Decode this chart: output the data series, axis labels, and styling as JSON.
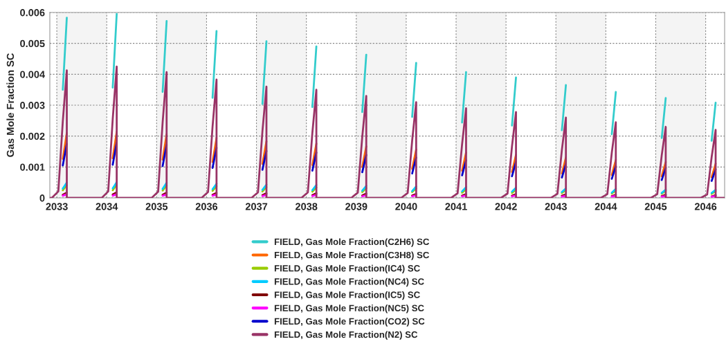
{
  "chart_data": {
    "type": "line",
    "ylabel": "Gas Mole Fraction SC",
    "xlim": [
      2032.86,
      2046.38
    ],
    "xticks": [
      2033,
      2034,
      2035,
      2036,
      2037,
      2038,
      2039,
      2040,
      2041,
      2042,
      2043,
      2044,
      2045,
      2046
    ],
    "ylim": [
      0,
      0.006
    ],
    "yticks": [
      0,
      0.001,
      0.002,
      0.003,
      0.004,
      0.005,
      0.006
    ],
    "grid": true,
    "legend": "bottom",
    "line_style": "solid",
    "marker": "none",
    "bands": [
      {
        "axis": "x",
        "from": 2033,
        "to": 2034,
        "color": "#f4f4f4"
      },
      {
        "axis": "x",
        "from": 2035,
        "to": 2036,
        "color": "#f4f4f4"
      },
      {
        "axis": "x",
        "from": 2037,
        "to": 2038,
        "color": "#f4f4f4"
      },
      {
        "axis": "x",
        "from": 2039,
        "to": 2040,
        "color": "#f4f4f4"
      },
      {
        "axis": "x",
        "from": 2041,
        "to": 2042,
        "color": "#f4f4f4"
      },
      {
        "axis": "x",
        "from": 2043,
        "to": 2044,
        "color": "#f4f4f4"
      },
      {
        "axis": "x",
        "from": 2045,
        "to": 2046,
        "color": "#f4f4f4"
      }
    ],
    "x": [
      2032.86,
      2032.9,
      2033.03,
      2033.12,
      2033.2,
      2033.2,
      2033.9,
      2034.03,
      2034.12,
      2034.2,
      2034.2,
      2034.9,
      2035.03,
      2035.12,
      2035.2,
      2035.2,
      2035.9,
      2036.03,
      2036.12,
      2036.2,
      2036.2,
      2036.9,
      2037.03,
      2037.12,
      2037.2,
      2037.2,
      2037.9,
      2038.03,
      2038.12,
      2038.2,
      2038.2,
      2038.9,
      2039.03,
      2039.12,
      2039.2,
      2039.2,
      2039.9,
      2040.03,
      2040.12,
      2040.2,
      2040.2,
      2040.9,
      2041.03,
      2041.12,
      2041.2,
      2041.2,
      2041.9,
      2042.03,
      2042.12,
      2042.2,
      2042.2,
      2042.9,
      2043.03,
      2043.12,
      2043.2,
      2043.2,
      2043.9,
      2044.03,
      2044.12,
      2044.2,
      2044.2,
      2044.9,
      2045.03,
      2045.12,
      2045.2,
      2045.2,
      2045.9,
      2046.03,
      2046.12,
      2046.2,
      2046.2,
      2046.38
    ],
    "series": [
      {
        "name": "FIELD, Gas Mole Fraction(C2H6) SC",
        "color": "#33cccc",
        "values": [
          null,
          null,
          null,
          0.0035,
          0.00583,
          null,
          null,
          null,
          0.00357,
          0.00595,
          null,
          null,
          null,
          0.00343,
          0.00572,
          null,
          null,
          null,
          0.00324,
          0.0054,
          null,
          null,
          null,
          0.00304,
          0.00507,
          null,
          null,
          null,
          0.00294,
          0.0049,
          null,
          null,
          null,
          0.00278,
          0.00463,
          null,
          null,
          null,
          0.00262,
          0.00437,
          null,
          null,
          null,
          0.00244,
          0.00407,
          null,
          null,
          null,
          0.00234,
          0.0039,
          null,
          null,
          null,
          0.00219,
          0.00365,
          null,
          null,
          null,
          0.00206,
          0.00343,
          null,
          null,
          null,
          0.00194,
          0.00323,
          null,
          null,
          null,
          0.00185,
          0.00308,
          null,
          null
        ]
      },
      {
        "name": "FIELD, Gas Mole Fraction(C3H8) SC",
        "color": "#ff6600",
        "values": [
          null,
          null,
          null,
          0.00126,
          0.0021,
          null,
          null,
          null,
          0.00128,
          0.00214,
          null,
          null,
          null,
          0.00124,
          0.00206,
          null,
          null,
          null,
          0.00116,
          0.00194,
          null,
          null,
          null,
          0.0011,
          0.00183,
          null,
          null,
          null,
          0.00106,
          0.00176,
          null,
          null,
          null,
          0.001,
          0.00167,
          null,
          null,
          null,
          0.00094,
          0.00157,
          null,
          null,
          null,
          0.00088,
          0.00147,
          null,
          null,
          null,
          0.00084,
          0.0014,
          null,
          null,
          null,
          0.00079,
          0.00131,
          null,
          null,
          null,
          0.00074,
          0.00123,
          null,
          null,
          null,
          0.0007,
          0.00116,
          null,
          null,
          null,
          0.00067,
          0.00111,
          null,
          null
        ]
      },
      {
        "name": "FIELD, Gas Mole Fraction(IC4) SC",
        "color": "#99cc00",
        "values": [
          null,
          null,
          null,
          0.00025,
          0.00041,
          null,
          null,
          null,
          0.00025,
          0.00042,
          null,
          null,
          null,
          0.00024,
          0.0004,
          null,
          null,
          null,
          0.00023,
          0.00038,
          null,
          null,
          null,
          0.00021,
          0.00035,
          null,
          null,
          null,
          0.0002,
          0.00034,
          null,
          null,
          null,
          0.00019,
          0.00032,
          null,
          null,
          null,
          0.00019,
          0.00031,
          null,
          null,
          null,
          0.00017,
          0.00028,
          null,
          null,
          null,
          0.00016,
          0.00027,
          null,
          null,
          null,
          0.00016,
          0.00026,
          null,
          null,
          null,
          0.00014,
          0.00024,
          null,
          null,
          null,
          0.00014,
          0.00023,
          null,
          null,
          null,
          0.00013,
          0.00022,
          null,
          null
        ]
      },
      {
        "name": "FIELD, Gas Mole Fraction(NC4) SC",
        "color": "#00ccff",
        "values": [
          null,
          null,
          null,
          0.0003,
          0.0005,
          null,
          null,
          null,
          0.00031,
          0.00051,
          null,
          null,
          null,
          0.00029,
          0.00049,
          null,
          null,
          null,
          0.00028,
          0.00046,
          null,
          null,
          null,
          0.00026,
          0.00043,
          null,
          null,
          null,
          0.00025,
          0.00042,
          null,
          null,
          null,
          0.00023,
          0.00039,
          null,
          null,
          null,
          0.00022,
          0.00037,
          null,
          null,
          null,
          0.00021,
          0.00035,
          null,
          null,
          null,
          0.0002,
          0.00033,
          null,
          null,
          null,
          0.00019,
          0.00031,
          null,
          null,
          null,
          0.00017,
          0.00029,
          null,
          null,
          null,
          0.00016,
          0.00027,
          null,
          null,
          null,
          0.00016,
          0.00026,
          null,
          null
        ]
      },
      {
        "name": "FIELD, Gas Mole Fraction(IC5) SC",
        "color": "#800000",
        "values": [
          null,
          null,
          null,
          0.0001,
          0.00017,
          null,
          null,
          null,
          0.00011,
          0.00018,
          null,
          null,
          null,
          0.0001,
          0.00017,
          null,
          null,
          null,
          0.0001,
          0.00016,
          null,
          null,
          null,
          9e-05,
          0.00015,
          null,
          null,
          null,
          9e-05,
          0.00015,
          null,
          null,
          null,
          8e-05,
          0.00014,
          null,
          null,
          null,
          8e-05,
          0.00013,
          null,
          null,
          null,
          7e-05,
          0.00012,
          null,
          null,
          null,
          7e-05,
          0.00012,
          null,
          null,
          null,
          7e-05,
          0.00011,
          null,
          null,
          null,
          6e-05,
          0.0001,
          null,
          null,
          null,
          6e-05,
          0.0001,
          null,
          null,
          null,
          5e-05,
          9e-05,
          null,
          null
        ]
      },
      {
        "name": "FIELD, Gas Mole Fraction(NC5) SC",
        "color": "#ff00ff",
        "values": [
          null,
          null,
          null,
          7e-05,
          0.00012,
          null,
          null,
          null,
          7e-05,
          0.00012,
          null,
          null,
          null,
          7e-05,
          0.00011,
          null,
          null,
          null,
          7e-05,
          0.00011,
          null,
          null,
          null,
          6e-05,
          0.0001,
          null,
          null,
          null,
          6e-05,
          0.0001,
          null,
          null,
          null,
          5e-05,
          9e-05,
          null,
          null,
          null,
          5e-05,
          9e-05,
          null,
          null,
          null,
          5e-05,
          8e-05,
          null,
          null,
          null,
          5e-05,
          8e-05,
          null,
          null,
          null,
          4e-05,
          7e-05,
          null,
          null,
          null,
          4e-05,
          7e-05,
          null,
          null,
          null,
          4e-05,
          6e-05,
          null,
          null,
          null,
          4e-05,
          6e-05,
          null,
          null
        ]
      },
      {
        "name": "FIELD, Gas Mole Fraction(CO2) SC",
        "color": "#0000cc",
        "values": [
          null,
          null,
          null,
          0.00105,
          0.00175,
          null,
          null,
          null,
          0.00107,
          0.00179,
          null,
          null,
          null,
          0.00103,
          0.00172,
          null,
          null,
          null,
          0.00097,
          0.00162,
          null,
          null,
          null,
          0.00091,
          0.00152,
          null,
          null,
          null,
          0.00088,
          0.00147,
          null,
          null,
          null,
          0.00083,
          0.00139,
          null,
          null,
          null,
          0.00079,
          0.00131,
          null,
          null,
          null,
          0.00073,
          0.00122,
          null,
          null,
          null,
          0.0007,
          0.00117,
          null,
          null,
          null,
          0.00066,
          0.0011,
          null,
          null,
          null,
          0.00062,
          0.00103,
          null,
          null,
          null,
          0.00058,
          0.00097,
          null,
          null,
          null,
          0.00055,
          0.00092,
          null,
          null
        ]
      },
      {
        "name": "FIELD, Gas Mole Fraction(N2) SC",
        "color": "#993366",
        "values": [
          0,
          0,
          0.00021,
          0.00248,
          0.00413,
          0,
          0,
          0.00021,
          0.00255,
          0.00425,
          0,
          0,
          0.0002,
          0.00244,
          0.00407,
          0,
          0,
          0.00019,
          0.0023,
          0.00383,
          0,
          0,
          0.00018,
          0.00216,
          0.0036,
          0,
          0,
          0.00018,
          0.0021,
          0.0035,
          0,
          0,
          0.00017,
          0.00198,
          0.0033,
          0,
          0,
          0.00016,
          0.00186,
          0.0031,
          0,
          0,
          0.00015,
          0.00174,
          0.0029,
          0,
          0,
          0.00014,
          0.00167,
          0.00278,
          0,
          0,
          0.00013,
          0.00156,
          0.0026,
          0,
          0,
          0.00012,
          0.00147,
          0.00245,
          0,
          0,
          0.00012,
          0.00138,
          0.0023,
          0,
          0,
          0.00011,
          0.00132,
          0.0022,
          0,
          0
        ]
      }
    ]
  }
}
